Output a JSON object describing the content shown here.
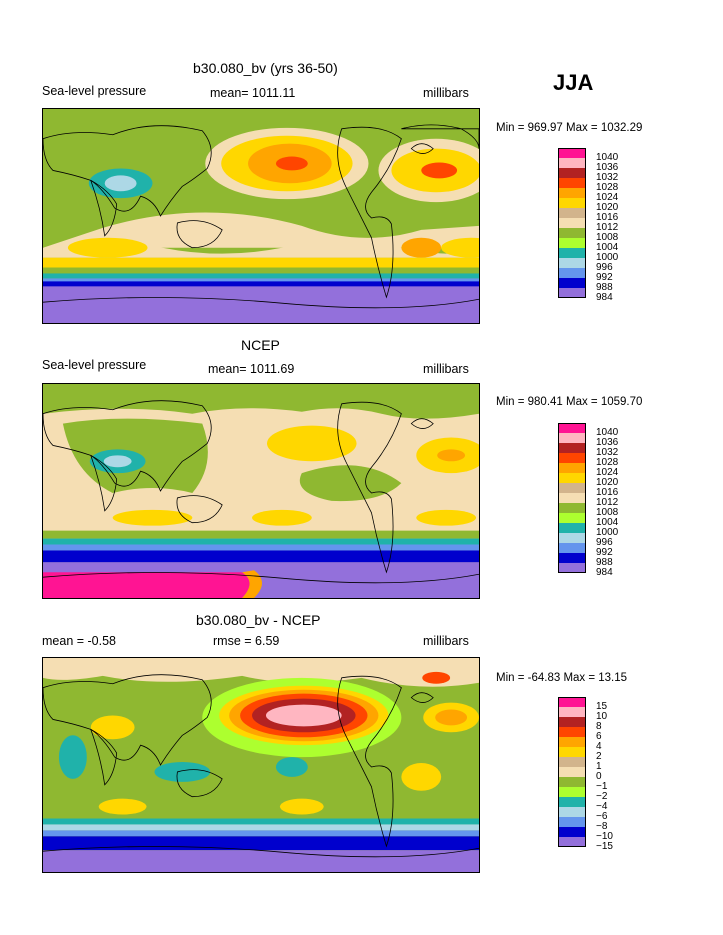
{
  "season": "JJA",
  "palette": {
    "p1040": "#ff1493",
    "p1036": "#ffb6c1",
    "p1032": "#b22222",
    "p1028": "#ff4500",
    "p1024": "#ffa500",
    "p1020": "#ffd700",
    "p1016": "#d2b48c",
    "p1012": "#f5deb3",
    "p1008": "#8fb831",
    "p1004": "#adff2f",
    "p1000": "#20b2aa",
    "p996": "#add8e6",
    "p992": "#6495ed",
    "p988": "#0000cd",
    "p984": "#9370db",
    "land": "#000000"
  },
  "panels": [
    {
      "id": "model",
      "title": "b30.080_bv (yrs 36-50)",
      "left_label": "Sea-level pressure",
      "mean_label": "mean= 1011.11",
      "units": "millibars",
      "minmax": "Min = 969.97 Max = 1032.29"
    },
    {
      "id": "obs",
      "title": "NCEP",
      "left_label": "Sea-level pressure",
      "mean_label": "mean= 1011.69",
      "units": "millibars",
      "minmax": "Min = 980.41 Max = 1059.70"
    },
    {
      "id": "diff",
      "title": "b30.080_bv - NCEP",
      "left_label": "mean =   -0.58",
      "mean_label": "rmse =    6.59",
      "units": "millibars",
      "minmax": "Min = -64.83 Max =   13.15"
    }
  ],
  "chart_data": [
    {
      "type": "heatmap",
      "title": "b30.080_bv (yrs 36-50)",
      "subtitle": "Sea-level pressure",
      "units": "millibars",
      "mean": 1011.11,
      "min": 969.97,
      "max": 1032.29,
      "contour_levels": [
        1040,
        1036,
        1032,
        1028,
        1024,
        1020,
        1016,
        1012,
        1008,
        1004,
        1000,
        996,
        992,
        988,
        984
      ],
      "legend_labels": [
        "1040",
        "1036",
        "1032",
        "1028",
        "1024",
        "1020",
        "1016",
        "1012",
        "1008",
        "1004",
        "1000",
        "996",
        "992",
        "988",
        "984"
      ],
      "legend_colors": [
        "#ff1493",
        "#ffb6c1",
        "#b22222",
        "#ff4500",
        "#ffa500",
        "#ffd700",
        "#d2b48c",
        "#f5deb3",
        "#8fb831",
        "#adff2f",
        "#20b2aa",
        "#add8e6",
        "#6495ed",
        "#0000cd",
        "#9370db"
      ],
      "legend_placement": "right"
    },
    {
      "type": "heatmap",
      "title": "NCEP",
      "subtitle": "Sea-level pressure",
      "units": "millibars",
      "mean": 1011.69,
      "min": 980.41,
      "max": 1059.7,
      "contour_levels": [
        1040,
        1036,
        1032,
        1028,
        1024,
        1020,
        1016,
        1012,
        1008,
        1004,
        1000,
        996,
        992,
        988,
        984
      ],
      "legend_labels": [
        "1040",
        "1036",
        "1032",
        "1028",
        "1024",
        "1020",
        "1016",
        "1012",
        "1008",
        "1004",
        "1000",
        "996",
        "992",
        "988",
        "984"
      ],
      "legend_colors": [
        "#ff1493",
        "#ffb6c1",
        "#b22222",
        "#ff4500",
        "#ffa500",
        "#ffd700",
        "#d2b48c",
        "#f5deb3",
        "#8fb831",
        "#adff2f",
        "#20b2aa",
        "#add8e6",
        "#6495ed",
        "#0000cd",
        "#9370db"
      ],
      "legend_placement": "right"
    },
    {
      "type": "heatmap",
      "title": "b30.080_bv - NCEP",
      "units": "millibars",
      "mean": -0.58,
      "rmse": 6.59,
      "min": -64.83,
      "max": 13.15,
      "contour_levels": [
        15,
        10,
        8,
        6,
        4,
        2,
        1,
        0,
        -1,
        -2,
        -4,
        -6,
        -8,
        -10,
        -15
      ],
      "legend_labels": [
        "15",
        "10",
        "8",
        "6",
        "4",
        "2",
        "1",
        "0",
        "−1",
        "−2",
        "−4",
        "−6",
        "−8",
        "−10",
        "−15"
      ],
      "legend_colors": [
        "#ff1493",
        "#ffb6c1",
        "#b22222",
        "#ff4500",
        "#ffa500",
        "#ffd700",
        "#d2b48c",
        "#f5deb3",
        "#8fb831",
        "#adff2f",
        "#20b2aa",
        "#add8e6",
        "#6495ed",
        "#0000cd",
        "#9370db"
      ],
      "legend_placement": "right"
    }
  ]
}
